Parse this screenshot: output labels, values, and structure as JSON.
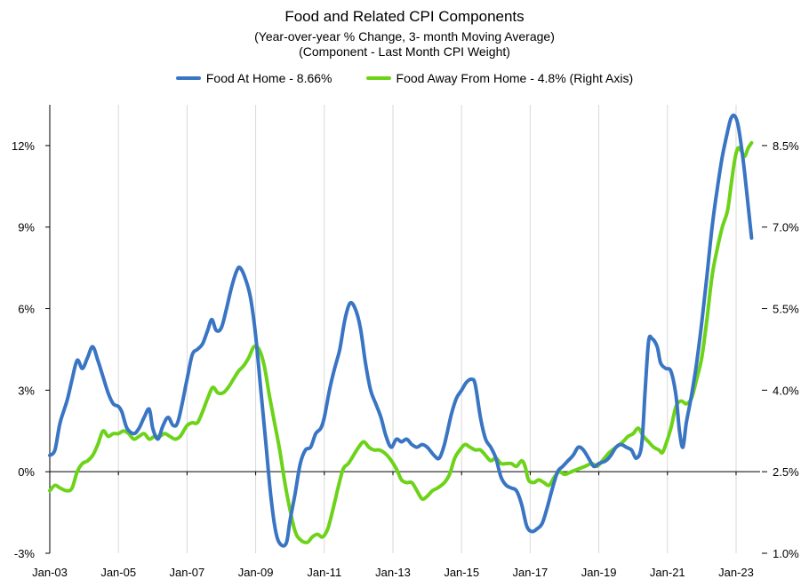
{
  "chart_data": {
    "type": "line",
    "title": "Food  and Related CPI Components",
    "subtitle": "(Year-over-year % Change, 3- month Moving Average)",
    "subtitle2": "(Component - Last Month CPI Weight)",
    "left_axis": {
      "ylim": [
        -3,
        13.5
      ],
      "ticks": [
        -3,
        0,
        3,
        6,
        9,
        12
      ],
      "tick_labels": [
        "-3%",
        "0%",
        "3%",
        "6%",
        "9%",
        "12%"
      ]
    },
    "right_axis": {
      "ylim": [
        1.0,
        9.25
      ],
      "ticks": [
        1.0,
        2.5,
        4.0,
        5.5,
        7.0,
        8.5
      ],
      "tick_labels": [
        "1.0%",
        "2.5%",
        "4.0%",
        "5.5%",
        "7.0%",
        "8.5%"
      ]
    },
    "xlim": [
      2003.0,
      2023.7
    ],
    "x_ticks": [
      2003,
      2005,
      2007,
      2009,
      2011,
      2013,
      2015,
      2017,
      2019,
      2021,
      2023
    ],
    "x_tick_labels": [
      "Jan-03",
      "Jan-05",
      "Jan-07",
      "Jan-09",
      "Jan-11",
      "Jan-13",
      "Jan-15",
      "Jan-17",
      "Jan-19",
      "Jan-21",
      "Jan-23"
    ],
    "grid": "vertical",
    "series": [
      {
        "name": "Food At Home - 8.66%",
        "color": "#3a75c4",
        "axis": "left",
        "points": [
          [
            2003.0,
            0.6
          ],
          [
            2003.15,
            0.8
          ],
          [
            2003.3,
            1.8
          ],
          [
            2003.5,
            2.6
          ],
          [
            2003.65,
            3.4
          ],
          [
            2003.8,
            4.1
          ],
          [
            2003.95,
            3.8
          ],
          [
            2004.1,
            4.2
          ],
          [
            2004.25,
            4.6
          ],
          [
            2004.4,
            4.1
          ],
          [
            2004.55,
            3.5
          ],
          [
            2004.7,
            2.9
          ],
          [
            2004.85,
            2.5
          ],
          [
            2005.0,
            2.4
          ],
          [
            2005.1,
            2.2
          ],
          [
            2005.25,
            1.6
          ],
          [
            2005.45,
            1.4
          ],
          [
            2005.6,
            1.6
          ],
          [
            2005.75,
            2.0
          ],
          [
            2005.9,
            2.3
          ],
          [
            2006.0,
            1.6
          ],
          [
            2006.15,
            1.2
          ],
          [
            2006.3,
            1.7
          ],
          [
            2006.45,
            2.0
          ],
          [
            2006.6,
            1.7
          ],
          [
            2006.75,
            1.9
          ],
          [
            2007.0,
            3.4
          ],
          [
            2007.15,
            4.3
          ],
          [
            2007.3,
            4.5
          ],
          [
            2007.45,
            4.7
          ],
          [
            2007.6,
            5.2
          ],
          [
            2007.72,
            5.6
          ],
          [
            2007.85,
            5.2
          ],
          [
            2008.0,
            5.3
          ],
          [
            2008.15,
            6.0
          ],
          [
            2008.3,
            6.8
          ],
          [
            2008.45,
            7.4
          ],
          [
            2008.55,
            7.5
          ],
          [
            2008.7,
            7.1
          ],
          [
            2008.85,
            6.4
          ],
          [
            2009.0,
            5.0
          ],
          [
            2009.15,
            3.0
          ],
          [
            2009.3,
            1.0
          ],
          [
            2009.45,
            -1.0
          ],
          [
            2009.6,
            -2.3
          ],
          [
            2009.75,
            -2.7
          ],
          [
            2009.9,
            -2.6
          ],
          [
            2010.0,
            -1.8
          ],
          [
            2010.15,
            -0.8
          ],
          [
            2010.3,
            0.3
          ],
          [
            2010.45,
            0.8
          ],
          [
            2010.6,
            0.9
          ],
          [
            2010.75,
            1.4
          ],
          [
            2010.9,
            1.6
          ],
          [
            2011.0,
            2.0
          ],
          [
            2011.15,
            3.0
          ],
          [
            2011.3,
            3.8
          ],
          [
            2011.45,
            4.5
          ],
          [
            2011.6,
            5.6
          ],
          [
            2011.75,
            6.2
          ],
          [
            2011.9,
            6.0
          ],
          [
            2012.05,
            5.3
          ],
          [
            2012.2,
            4.0
          ],
          [
            2012.35,
            3.0
          ],
          [
            2012.5,
            2.5
          ],
          [
            2012.65,
            2.0
          ],
          [
            2012.8,
            1.3
          ],
          [
            2012.95,
            0.9
          ],
          [
            2013.1,
            1.2
          ],
          [
            2013.25,
            1.1
          ],
          [
            2013.4,
            1.2
          ],
          [
            2013.55,
            1.0
          ],
          [
            2013.7,
            0.9
          ],
          [
            2013.85,
            1.0
          ],
          [
            2014.0,
            0.9
          ],
          [
            2014.2,
            0.6
          ],
          [
            2014.35,
            0.5
          ],
          [
            2014.5,
            1.0
          ],
          [
            2014.7,
            2.1
          ],
          [
            2014.85,
            2.7
          ],
          [
            2015.0,
            3.0
          ],
          [
            2015.15,
            3.3
          ],
          [
            2015.3,
            3.4
          ],
          [
            2015.4,
            3.2
          ],
          [
            2015.55,
            2.0
          ],
          [
            2015.7,
            1.2
          ],
          [
            2015.85,
            0.9
          ],
          [
            2016.0,
            0.5
          ],
          [
            2016.15,
            -0.2
          ],
          [
            2016.3,
            -0.5
          ],
          [
            2016.45,
            -0.6
          ],
          [
            2016.6,
            -0.7
          ],
          [
            2016.75,
            -1.2
          ],
          [
            2016.9,
            -2.0
          ],
          [
            2017.05,
            -2.2
          ],
          [
            2017.2,
            -2.1
          ],
          [
            2017.35,
            -1.9
          ],
          [
            2017.5,
            -1.3
          ],
          [
            2017.65,
            -0.6
          ],
          [
            2017.8,
            0.0
          ],
          [
            2017.95,
            0.2
          ],
          [
            2018.1,
            0.4
          ],
          [
            2018.25,
            0.6
          ],
          [
            2018.4,
            0.9
          ],
          [
            2018.55,
            0.8
          ],
          [
            2018.7,
            0.5
          ],
          [
            2018.85,
            0.2
          ],
          [
            2019.0,
            0.3
          ],
          [
            2019.2,
            0.4
          ],
          [
            2019.35,
            0.6
          ],
          [
            2019.5,
            0.9
          ],
          [
            2019.65,
            1.0
          ],
          [
            2019.8,
            0.9
          ],
          [
            2019.95,
            0.8
          ],
          [
            2020.1,
            0.5
          ],
          [
            2020.25,
            1.0
          ],
          [
            2020.35,
            3.0
          ],
          [
            2020.45,
            4.8
          ],
          [
            2020.55,
            4.9
          ],
          [
            2020.7,
            4.6
          ],
          [
            2020.8,
            4.0
          ],
          [
            2020.95,
            3.8
          ],
          [
            2021.1,
            3.7
          ],
          [
            2021.25,
            2.8
          ],
          [
            2021.35,
            1.5
          ],
          [
            2021.45,
            0.9
          ],
          [
            2021.55,
            1.8
          ],
          [
            2021.7,
            2.8
          ],
          [
            2021.85,
            4.0
          ],
          [
            2022.0,
            5.5
          ],
          [
            2022.15,
            7.2
          ],
          [
            2022.3,
            9.0
          ],
          [
            2022.45,
            10.4
          ],
          [
            2022.6,
            11.6
          ],
          [
            2022.75,
            12.5
          ],
          [
            2022.85,
            13.0
          ],
          [
            2022.95,
            13.1
          ],
          [
            2023.05,
            12.8
          ],
          [
            2023.15,
            12.0
          ],
          [
            2023.25,
            11.0
          ],
          [
            2023.35,
            9.8
          ],
          [
            2023.45,
            8.6
          ]
        ]
      },
      {
        "name": "Food Away From Home - 4.8% (Right Axis)",
        "color": "#6cd319",
        "axis": "right",
        "points": [
          [
            2003.0,
            2.15
          ],
          [
            2003.15,
            2.25
          ],
          [
            2003.3,
            2.2
          ],
          [
            2003.5,
            2.15
          ],
          [
            2003.65,
            2.2
          ],
          [
            2003.8,
            2.5
          ],
          [
            2003.95,
            2.65
          ],
          [
            2004.1,
            2.7
          ],
          [
            2004.25,
            2.8
          ],
          [
            2004.4,
            3.0
          ],
          [
            2004.55,
            3.25
          ],
          [
            2004.7,
            3.15
          ],
          [
            2004.85,
            3.2
          ],
          [
            2005.0,
            3.2
          ],
          [
            2005.15,
            3.25
          ],
          [
            2005.3,
            3.2
          ],
          [
            2005.45,
            3.1
          ],
          [
            2005.6,
            3.15
          ],
          [
            2005.75,
            3.2
          ],
          [
            2005.9,
            3.1
          ],
          [
            2006.05,
            3.15
          ],
          [
            2006.2,
            3.15
          ],
          [
            2006.35,
            3.2
          ],
          [
            2006.5,
            3.15
          ],
          [
            2006.65,
            3.1
          ],
          [
            2006.8,
            3.15
          ],
          [
            2007.0,
            3.35
          ],
          [
            2007.15,
            3.4
          ],
          [
            2007.3,
            3.4
          ],
          [
            2007.45,
            3.6
          ],
          [
            2007.6,
            3.85
          ],
          [
            2007.75,
            4.05
          ],
          [
            2007.9,
            3.95
          ],
          [
            2008.05,
            3.95
          ],
          [
            2008.2,
            4.05
          ],
          [
            2008.35,
            4.2
          ],
          [
            2008.5,
            4.35
          ],
          [
            2008.65,
            4.45
          ],
          [
            2008.8,
            4.6
          ],
          [
            2008.95,
            4.8
          ],
          [
            2009.1,
            4.75
          ],
          [
            2009.25,
            4.45
          ],
          [
            2009.4,
            3.9
          ],
          [
            2009.55,
            3.4
          ],
          [
            2009.7,
            2.9
          ],
          [
            2009.85,
            2.3
          ],
          [
            2010.0,
            1.8
          ],
          [
            2010.15,
            1.4
          ],
          [
            2010.3,
            1.25
          ],
          [
            2010.5,
            1.2
          ],
          [
            2010.65,
            1.3
          ],
          [
            2010.8,
            1.35
          ],
          [
            2010.95,
            1.3
          ],
          [
            2011.1,
            1.45
          ],
          [
            2011.25,
            1.8
          ],
          [
            2011.4,
            2.2
          ],
          [
            2011.55,
            2.55
          ],
          [
            2011.7,
            2.65
          ],
          [
            2011.85,
            2.8
          ],
          [
            2012.0,
            2.95
          ],
          [
            2012.15,
            3.05
          ],
          [
            2012.3,
            2.95
          ],
          [
            2012.45,
            2.9
          ],
          [
            2012.6,
            2.9
          ],
          [
            2012.75,
            2.85
          ],
          [
            2012.9,
            2.75
          ],
          [
            2013.1,
            2.55
          ],
          [
            2013.25,
            2.35
          ],
          [
            2013.4,
            2.3
          ],
          [
            2013.55,
            2.3
          ],
          [
            2013.7,
            2.15
          ],
          [
            2013.85,
            2.0
          ],
          [
            2014.0,
            2.05
          ],
          [
            2014.15,
            2.15
          ],
          [
            2014.3,
            2.2
          ],
          [
            2014.5,
            2.3
          ],
          [
            2014.65,
            2.45
          ],
          [
            2014.8,
            2.75
          ],
          [
            2014.95,
            2.9
          ],
          [
            2015.1,
            3.0
          ],
          [
            2015.25,
            2.95
          ],
          [
            2015.4,
            2.9
          ],
          [
            2015.55,
            2.9
          ],
          [
            2015.7,
            2.8
          ],
          [
            2015.85,
            2.7
          ],
          [
            2016.0,
            2.75
          ],
          [
            2016.15,
            2.65
          ],
          [
            2016.3,
            2.65
          ],
          [
            2016.45,
            2.65
          ],
          [
            2016.6,
            2.6
          ],
          [
            2016.75,
            2.7
          ],
          [
            2016.85,
            2.6
          ],
          [
            2016.95,
            2.35
          ],
          [
            2017.1,
            2.3
          ],
          [
            2017.25,
            2.35
          ],
          [
            2017.4,
            2.3
          ],
          [
            2017.55,
            2.25
          ],
          [
            2017.7,
            2.4
          ],
          [
            2017.85,
            2.5
          ],
          [
            2018.0,
            2.45
          ],
          [
            2018.2,
            2.5
          ],
          [
            2018.4,
            2.55
          ],
          [
            2018.6,
            2.6
          ],
          [
            2018.8,
            2.65
          ],
          [
            2018.95,
            2.6
          ],
          [
            2019.1,
            2.7
          ],
          [
            2019.3,
            2.85
          ],
          [
            2019.5,
            2.95
          ],
          [
            2019.7,
            3.05
          ],
          [
            2019.85,
            3.15
          ],
          [
            2020.0,
            3.2
          ],
          [
            2020.15,
            3.3
          ],
          [
            2020.3,
            3.15
          ],
          [
            2020.45,
            3.05
          ],
          [
            2020.6,
            2.95
          ],
          [
            2020.75,
            2.9
          ],
          [
            2020.85,
            2.85
          ],
          [
            2020.95,
            3.0
          ],
          [
            2021.1,
            3.3
          ],
          [
            2021.25,
            3.7
          ],
          [
            2021.4,
            3.8
          ],
          [
            2021.55,
            3.75
          ],
          [
            2021.7,
            3.85
          ],
          [
            2021.85,
            4.2
          ],
          [
            2022.0,
            4.6
          ],
          [
            2022.15,
            5.3
          ],
          [
            2022.3,
            6.1
          ],
          [
            2022.45,
            6.6
          ],
          [
            2022.6,
            7.0
          ],
          [
            2022.75,
            7.3
          ],
          [
            2022.85,
            7.75
          ],
          [
            2022.95,
            8.2
          ],
          [
            2023.05,
            8.45
          ],
          [
            2023.15,
            8.4
          ],
          [
            2023.25,
            8.3
          ],
          [
            2023.35,
            8.45
          ],
          [
            2023.45,
            8.55
          ]
        ]
      }
    ]
  }
}
